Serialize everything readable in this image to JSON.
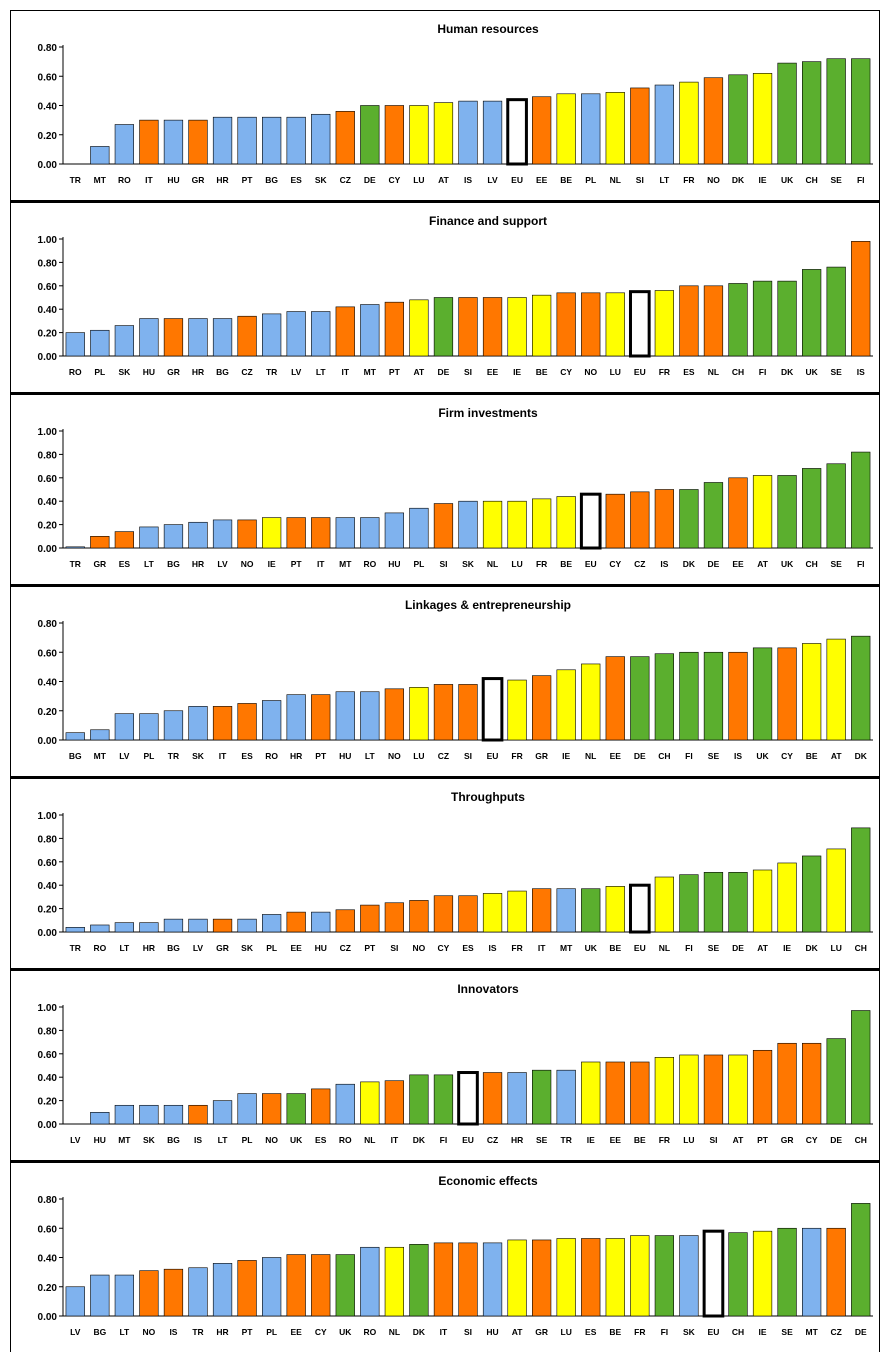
{
  "palette": {
    "blue": "#7FB2EE",
    "orange": "#FF7700",
    "yellow": "#FFFF00",
    "green": "#5BAF2E",
    "eu": "#FFFFFF",
    "outline": "#000000"
  },
  "chart_data": [
    {
      "type": "bar",
      "title": "Human resources",
      "ylim": [
        0,
        0.8
      ],
      "yticks": [
        "0.00",
        "0.20",
        "0.40",
        "0.60",
        "0.80"
      ],
      "categories": [
        "TR",
        "MT",
        "RO",
        "IT",
        "HU",
        "GR",
        "HR",
        "PT",
        "BG",
        "ES",
        "SK",
        "CZ",
        "DE",
        "CY",
        "LU",
        "AT",
        "IS",
        "LV",
        "EU",
        "EE",
        "BE",
        "PL",
        "NL",
        "SI",
        "LT",
        "FR",
        "NO",
        "DK",
        "IE",
        "UK",
        "CH",
        "SE",
        "FI"
      ],
      "values": [
        0.0,
        0.12,
        0.27,
        0.3,
        0.3,
        0.3,
        0.32,
        0.32,
        0.32,
        0.32,
        0.34,
        0.36,
        0.4,
        0.4,
        0.4,
        0.42,
        0.43,
        0.43,
        0.44,
        0.46,
        0.48,
        0.48,
        0.49,
        0.52,
        0.54,
        0.56,
        0.59,
        0.61,
        0.62,
        0.69,
        0.7,
        0.72,
        0.72
      ],
      "colors": [
        "blue",
        "blue",
        "blue",
        "orange",
        "blue",
        "orange",
        "blue",
        "blue",
        "blue",
        "blue",
        "blue",
        "orange",
        "green",
        "orange",
        "yellow",
        "yellow",
        "blue",
        "blue",
        "eu",
        "orange",
        "yellow",
        "blue",
        "yellow",
        "orange",
        "blue",
        "yellow",
        "orange",
        "green",
        "yellow",
        "green",
        "green",
        "green",
        "green"
      ]
    },
    {
      "type": "bar",
      "title": "Finance and support",
      "ylim": [
        0,
        1.0
      ],
      "yticks": [
        "0.00",
        "0.20",
        "0.40",
        "0.60",
        "0.80",
        "1.00"
      ],
      "categories": [
        "RO",
        "PL",
        "SK",
        "HU",
        "GR",
        "HR",
        "BG",
        "CZ",
        "TR",
        "LV",
        "LT",
        "IT",
        "MT",
        "PT",
        "AT",
        "DE",
        "SI",
        "EE",
        "IE",
        "BE",
        "CY",
        "NO",
        "LU",
        "EU",
        "FR",
        "ES",
        "NL",
        "CH",
        "FI",
        "DK",
        "UK",
        "SE",
        "IS"
      ],
      "values": [
        0.2,
        0.22,
        0.26,
        0.32,
        0.32,
        0.32,
        0.32,
        0.34,
        0.36,
        0.38,
        0.38,
        0.42,
        0.44,
        0.46,
        0.48,
        0.5,
        0.5,
        0.5,
        0.5,
        0.52,
        0.54,
        0.54,
        0.54,
        0.55,
        0.56,
        0.6,
        0.6,
        0.62,
        0.64,
        0.64,
        0.74,
        0.76,
        0.98
      ],
      "colors": [
        "blue",
        "blue",
        "blue",
        "blue",
        "orange",
        "blue",
        "blue",
        "orange",
        "blue",
        "blue",
        "blue",
        "orange",
        "blue",
        "orange",
        "yellow",
        "green",
        "orange",
        "orange",
        "yellow",
        "yellow",
        "orange",
        "orange",
        "yellow",
        "eu",
        "yellow",
        "orange",
        "orange",
        "green",
        "green",
        "green",
        "green",
        "green",
        "orange"
      ]
    },
    {
      "type": "bar",
      "title": "Firm investments",
      "ylim": [
        0,
        1.0
      ],
      "yticks": [
        "0.00",
        "0.20",
        "0.40",
        "0.60",
        "0.80",
        "1.00"
      ],
      "categories": [
        "TR",
        "GR",
        "ES",
        "LT",
        "BG",
        "HR",
        "LV",
        "NO",
        "IE",
        "PT",
        "IT",
        "MT",
        "RO",
        "HU",
        "PL",
        "SI",
        "SK",
        "NL",
        "LU",
        "FR",
        "BE",
        "EU",
        "CY",
        "CZ",
        "IS",
        "DK",
        "DE",
        "EE",
        "AT",
        "UK",
        "CH",
        "SE",
        "FI"
      ],
      "values": [
        0.01,
        0.1,
        0.14,
        0.18,
        0.2,
        0.22,
        0.24,
        0.24,
        0.26,
        0.26,
        0.26,
        0.26,
        0.26,
        0.3,
        0.34,
        0.38,
        0.4,
        0.4,
        0.4,
        0.42,
        0.44,
        0.46,
        0.46,
        0.48,
        0.5,
        0.5,
        0.56,
        0.6,
        0.62,
        0.62,
        0.68,
        0.72,
        0.82
      ],
      "colors": [
        "blue",
        "orange",
        "orange",
        "blue",
        "blue",
        "blue",
        "blue",
        "orange",
        "yellow",
        "orange",
        "orange",
        "blue",
        "blue",
        "blue",
        "blue",
        "orange",
        "blue",
        "yellow",
        "yellow",
        "yellow",
        "yellow",
        "eu",
        "orange",
        "orange",
        "orange",
        "green",
        "green",
        "orange",
        "yellow",
        "green",
        "green",
        "green",
        "green"
      ]
    },
    {
      "type": "bar",
      "title": "Linkages & entrepreneurship",
      "ylim": [
        0,
        0.8
      ],
      "yticks": [
        "0.00",
        "0.20",
        "0.40",
        "0.60",
        "0.80"
      ],
      "categories": [
        "BG",
        "MT",
        "LV",
        "PL",
        "TR",
        "SK",
        "IT",
        "ES",
        "RO",
        "HR",
        "PT",
        "HU",
        "LT",
        "NO",
        "LU",
        "CZ",
        "SI",
        "EU",
        "FR",
        "GR",
        "IE",
        "NL",
        "EE",
        "DE",
        "CH",
        "FI",
        "SE",
        "IS",
        "UK",
        "CY",
        "BE",
        "AT",
        "DK"
      ],
      "values": [
        0.05,
        0.07,
        0.18,
        0.18,
        0.2,
        0.23,
        0.23,
        0.25,
        0.27,
        0.31,
        0.31,
        0.33,
        0.33,
        0.35,
        0.36,
        0.38,
        0.38,
        0.42,
        0.41,
        0.44,
        0.48,
        0.52,
        0.57,
        0.57,
        0.59,
        0.6,
        0.6,
        0.6,
        0.63,
        0.63,
        0.66,
        0.69,
        0.71
      ],
      "colors": [
        "blue",
        "blue",
        "blue",
        "blue",
        "blue",
        "blue",
        "orange",
        "orange",
        "blue",
        "blue",
        "orange",
        "blue",
        "blue",
        "orange",
        "yellow",
        "orange",
        "orange",
        "eu",
        "yellow",
        "orange",
        "yellow",
        "yellow",
        "orange",
        "green",
        "green",
        "green",
        "green",
        "orange",
        "green",
        "orange",
        "yellow",
        "yellow",
        "green"
      ]
    },
    {
      "type": "bar",
      "title": "Throughputs",
      "ylim": [
        0,
        1.0
      ],
      "yticks": [
        "0.00",
        "0.20",
        "0.40",
        "0.60",
        "0.80",
        "1.00"
      ],
      "categories": [
        "TR",
        "RO",
        "LT",
        "HR",
        "BG",
        "LV",
        "GR",
        "SK",
        "PL",
        "EE",
        "HU",
        "CZ",
        "PT",
        "SI",
        "NO",
        "CY",
        "ES",
        "IS",
        "FR",
        "IT",
        "MT",
        "UK",
        "BE",
        "EU",
        "NL",
        "FI",
        "SE",
        "DE",
        "AT",
        "IE",
        "DK",
        "LU",
        "CH"
      ],
      "values": [
        0.04,
        0.06,
        0.08,
        0.08,
        0.11,
        0.11,
        0.11,
        0.11,
        0.15,
        0.17,
        0.17,
        0.19,
        0.23,
        0.25,
        0.27,
        0.31,
        0.31,
        0.33,
        0.35,
        0.37,
        0.37,
        0.37,
        0.39,
        0.4,
        0.47,
        0.49,
        0.51,
        0.51,
        0.53,
        0.59,
        0.65,
        0.71,
        0.89
      ],
      "colors": [
        "blue",
        "blue",
        "blue",
        "blue",
        "blue",
        "blue",
        "orange",
        "blue",
        "blue",
        "orange",
        "blue",
        "orange",
        "orange",
        "orange",
        "orange",
        "orange",
        "orange",
        "yellow",
        "yellow",
        "orange",
        "blue",
        "green",
        "yellow",
        "eu",
        "yellow",
        "green",
        "green",
        "green",
        "yellow",
        "yellow",
        "green",
        "yellow",
        "green"
      ]
    },
    {
      "type": "bar",
      "title": "Innovators",
      "ylim": [
        0,
        1.0
      ],
      "yticks": [
        "0.00",
        "0.20",
        "0.40",
        "0.60",
        "0.80",
        "1.00"
      ],
      "categories": [
        "LV",
        "HU",
        "MT",
        "SK",
        "BG",
        "IS",
        "LT",
        "PL",
        "NO",
        "UK",
        "ES",
        "RO",
        "NL",
        "IT",
        "DK",
        "FI",
        "EU",
        "CZ",
        "HR",
        "SE",
        "TR",
        "IE",
        "EE",
        "BE",
        "FR",
        "LU",
        "SI",
        "AT",
        "PT",
        "GR",
        "CY",
        "DE",
        "CH"
      ],
      "values": [
        0.0,
        0.1,
        0.16,
        0.16,
        0.16,
        0.16,
        0.2,
        0.26,
        0.26,
        0.26,
        0.3,
        0.34,
        0.36,
        0.37,
        0.42,
        0.42,
        0.44,
        0.44,
        0.44,
        0.46,
        0.46,
        0.53,
        0.53,
        0.53,
        0.57,
        0.59,
        0.59,
        0.59,
        0.63,
        0.69,
        0.69,
        0.73,
        0.97
      ],
      "colors": [
        "blue",
        "blue",
        "blue",
        "blue",
        "blue",
        "orange",
        "blue",
        "blue",
        "orange",
        "green",
        "orange",
        "blue",
        "yellow",
        "orange",
        "green",
        "green",
        "eu",
        "orange",
        "blue",
        "green",
        "blue",
        "yellow",
        "orange",
        "orange",
        "yellow",
        "yellow",
        "orange",
        "yellow",
        "orange",
        "orange",
        "orange",
        "green",
        "green"
      ]
    },
    {
      "type": "bar",
      "title": "Economic effects",
      "ylim": [
        0,
        0.8
      ],
      "yticks": [
        "0.00",
        "0.20",
        "0.40",
        "0.60",
        "0.80"
      ],
      "categories": [
        "LV",
        "BG",
        "LT",
        "NO",
        "IS",
        "TR",
        "HR",
        "PT",
        "PL",
        "EE",
        "CY",
        "UK",
        "RO",
        "NL",
        "DK",
        "IT",
        "SI",
        "HU",
        "AT",
        "GR",
        "LU",
        "ES",
        "BE",
        "FR",
        "FI",
        "SK",
        "EU",
        "CH",
        "IE",
        "SE",
        "MT",
        "CZ",
        "DE"
      ],
      "values": [
        0.2,
        0.28,
        0.28,
        0.31,
        0.32,
        0.33,
        0.36,
        0.38,
        0.4,
        0.42,
        0.42,
        0.42,
        0.47,
        0.47,
        0.49,
        0.5,
        0.5,
        0.5,
        0.52,
        0.52,
        0.53,
        0.53,
        0.53,
        0.55,
        0.55,
        0.55,
        0.58,
        0.57,
        0.58,
        0.6,
        0.6,
        0.6,
        0.77
      ],
      "colors": [
        "blue",
        "blue",
        "blue",
        "orange",
        "orange",
        "blue",
        "blue",
        "orange",
        "blue",
        "orange",
        "orange",
        "green",
        "blue",
        "yellow",
        "green",
        "orange",
        "orange",
        "blue",
        "yellow",
        "orange",
        "yellow",
        "orange",
        "yellow",
        "yellow",
        "green",
        "blue",
        "eu",
        "green",
        "yellow",
        "green",
        "blue",
        "orange",
        "green"
      ]
    }
  ]
}
